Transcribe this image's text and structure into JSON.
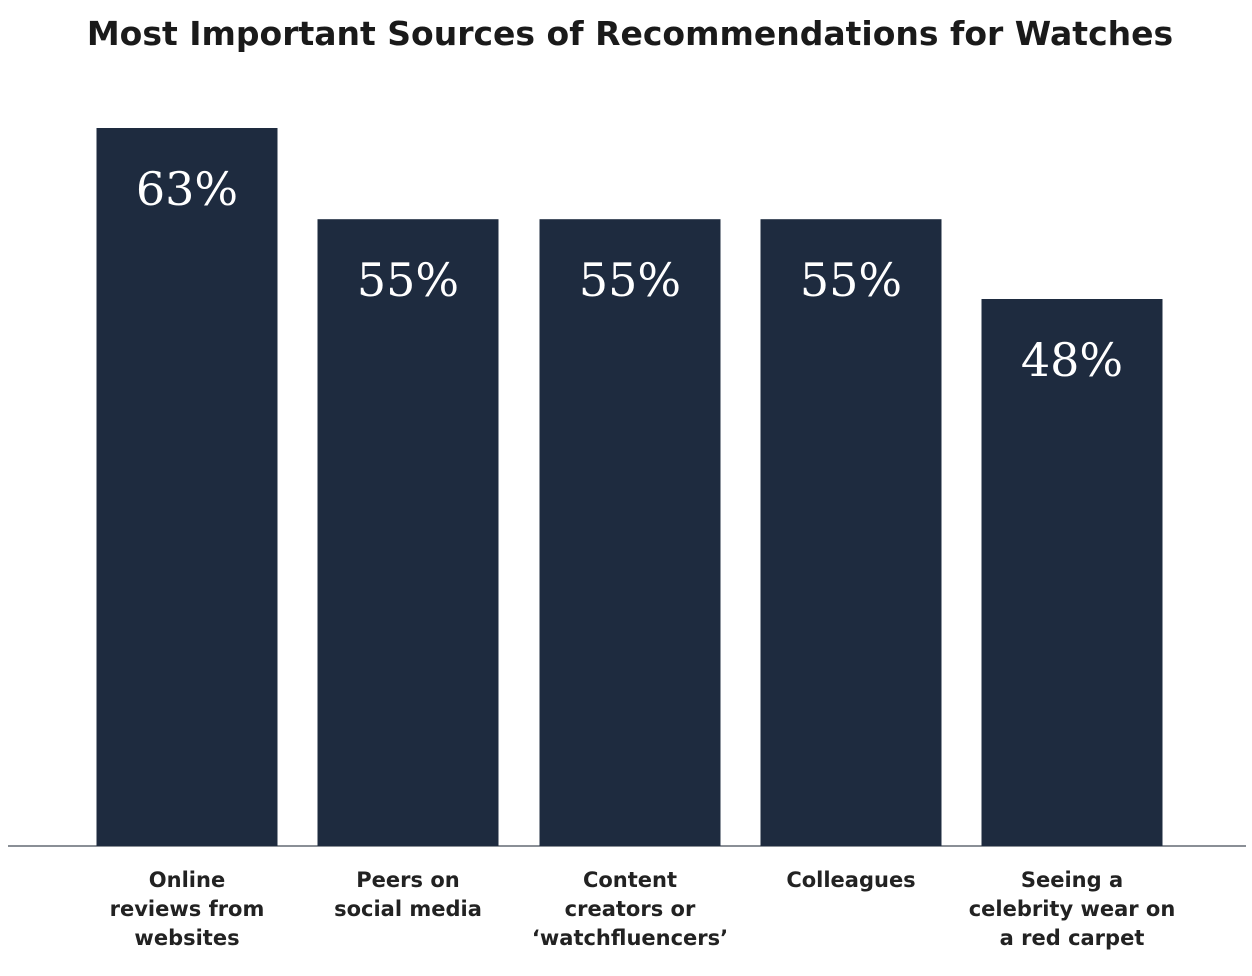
{
  "chart_data": {
    "type": "bar",
    "title": "Most Important Sources of Recommendations for Watches",
    "categories": [
      [
        "Online",
        "reviews from",
        "websites"
      ],
      [
        "Peers on",
        "social media"
      ],
      [
        "Content",
        "creators or",
        "‘watchfluencers’"
      ],
      [
        "Colleagues"
      ],
      [
        "Seeing a",
        "celebrity wear on",
        "a red carpet"
      ]
    ],
    "values": [
      63,
      55,
      55,
      55,
      48
    ],
    "value_labels": [
      "63%",
      "55%",
      "55%",
      "55%",
      "48%"
    ],
    "xlabel": "",
    "ylabel": "",
    "ylim": [
      0,
      66
    ],
    "grid": false,
    "legend": "none",
    "bar_color": "#1e2b3f"
  }
}
